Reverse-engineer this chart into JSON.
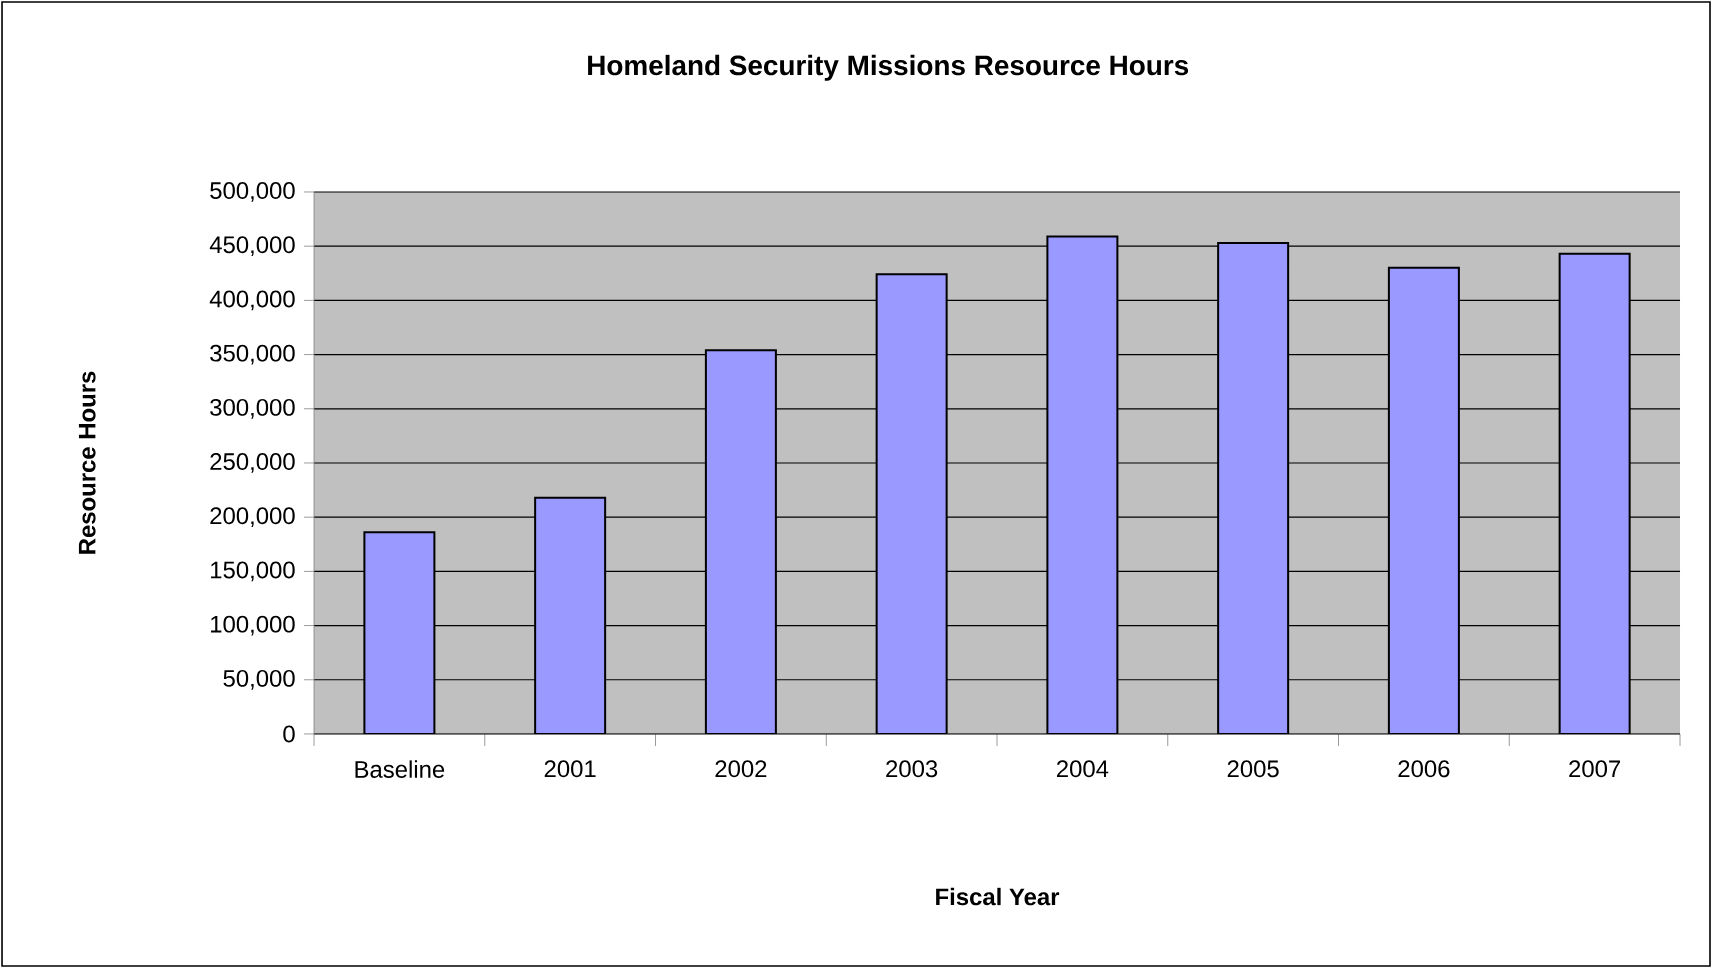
{
  "chart_data": {
    "type": "bar",
    "title": "Homeland Security Missions Resource Hours",
    "xlabel": "Fiscal Year",
    "ylabel": "Resource Hours",
    "categories": [
      "Baseline",
      "2001",
      "2002",
      "2003",
      "2004",
      "2005",
      "2006",
      "2007"
    ],
    "values": [
      186000,
      218000,
      354000,
      424000,
      459000,
      453000,
      430000,
      443000
    ],
    "color": "#9999ff",
    "ylim": [
      0,
      500000
    ],
    "yticks": [
      {
        "value": 0,
        "label": "0"
      },
      {
        "value": 50000,
        "label": "50,000"
      },
      {
        "value": 100000,
        "label": "100,000"
      },
      {
        "value": 150000,
        "label": "150,000"
      },
      {
        "value": 200000,
        "label": "200,000"
      },
      {
        "value": 250000,
        "label": "250,000"
      },
      {
        "value": 300000,
        "label": "300,000"
      },
      {
        "value": 350000,
        "label": "350,000"
      },
      {
        "value": 400000,
        "label": "400,000"
      },
      {
        "value": 450000,
        "label": "450,000"
      },
      {
        "value": 500000,
        "label": "500,000"
      }
    ],
    "grid": "y"
  }
}
